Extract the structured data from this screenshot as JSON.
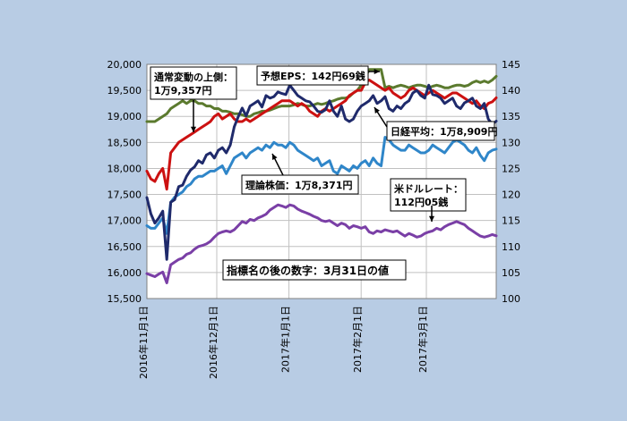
{
  "chart_data": {
    "type": "line",
    "colors": {
      "background": "#b8cce4",
      "plot_background": "#ffffff",
      "grid": "#c0c0c0",
      "nikkei": "#1f2a6b",
      "upper": "#cc1111",
      "eps": "#5b7a2e",
      "theory": "#2f86c9",
      "usd": "#7a3fa6"
    },
    "left_axis": {
      "range": [
        15500,
        20000
      ],
      "ticks": [
        15500,
        16000,
        16500,
        17000,
        17500,
        18000,
        18500,
        19000,
        19500,
        20000
      ],
      "tick_labels": [
        "15,500",
        "16,000",
        "16,500",
        "17,000",
        "17,500",
        "18,000",
        "18,500",
        "19,000",
        "19,500",
        "20,000"
      ]
    },
    "right_axis": {
      "range": [
        100,
        145
      ],
      "ticks": [
        100,
        105,
        110,
        115,
        120,
        125,
        130,
        135,
        140,
        145
      ],
      "tick_labels": [
        "100",
        "105",
        "110",
        "115",
        "120",
        "125",
        "130",
        "135",
        "140",
        "145"
      ]
    },
    "x_axis": {
      "start": "2016-11-01",
      "end": "2017-03-31",
      "ticks": [
        "2016-11-01",
        "2016-12-01",
        "2017-01-01",
        "2017-02-01",
        "2017-03-01"
      ],
      "tick_labels": [
        "2016年11月1日",
        "2016年12月1日",
        "2017年1月1日",
        "2017年2月1日",
        "2017年3月1日"
      ]
    },
    "grid": true,
    "series": [
      {
        "key": "nikkei",
        "axis": "left",
        "values": [
          17440,
          17130,
          16950,
          17050,
          17180,
          16250,
          17350,
          17400,
          17650,
          17680,
          17850,
          17970,
          18030,
          18150,
          18100,
          18260,
          18300,
          18200,
          18350,
          18400,
          18300,
          18450,
          18800,
          18990,
          19160,
          19010,
          19200,
          19250,
          19300,
          19180,
          19400,
          19350,
          19380,
          19470,
          19440,
          19420,
          19600,
          19500,
          19400,
          19350,
          19300,
          19280,
          19200,
          19100,
          19080,
          19130,
          19300,
          19100,
          19000,
          19200,
          18950,
          18900,
          18950,
          19100,
          19200,
          19250,
          19300,
          19400,
          19250,
          19300,
          19380,
          19150,
          19100,
          19200,
          19150,
          19250,
          19300,
          19450,
          19500,
          19400,
          19350,
          19600,
          19420,
          19400,
          19350,
          19250,
          19300,
          19350,
          19200,
          19150,
          19260,
          19300,
          19350,
          19200,
          19150,
          19250,
          18950,
          18850,
          18909
        ]
      },
      {
        "key": "upper",
        "axis": "left",
        "values": [
          17950,
          17800,
          17750,
          17900,
          18000,
          17600,
          18300,
          18400,
          18500,
          18550,
          18600,
          18650,
          18700,
          18750,
          18800,
          18850,
          18900,
          19000,
          19050,
          18950,
          19000,
          19050,
          18950,
          18900,
          18900,
          18950,
          18900,
          18950,
          19000,
          19050,
          19100,
          19150,
          19200,
          19250,
          19300,
          19300,
          19300,
          19250,
          19200,
          19250,
          19200,
          19100,
          19050,
          19000,
          19100,
          19150,
          19100,
          19150,
          19200,
          19250,
          19300,
          19400,
          19450,
          19500,
          19500,
          19650,
          19700,
          19650,
          19600,
          19550,
          19500,
          19550,
          19450,
          19400,
          19350,
          19400,
          19500,
          19550,
          19500,
          19450,
          19400,
          19450,
          19500,
          19450,
          19400,
          19350,
          19400,
          19450,
          19450,
          19400,
          19350,
          19300,
          19250,
          19300,
          19200,
          19150,
          19250,
          19280,
          19357
        ]
      },
      {
        "key": "eps",
        "axis": "right",
        "values": [
          134,
          134,
          134,
          134.5,
          135,
          135.5,
          136.5,
          137,
          137.5,
          138,
          137.5,
          138,
          138,
          137.5,
          137.5,
          137,
          137,
          136.5,
          136.5,
          136,
          136,
          135.8,
          135.5,
          135.5,
          135.3,
          135,
          135,
          135.5,
          135.7,
          136,
          136,
          136.2,
          136.5,
          136.8,
          137,
          137,
          137,
          137.2,
          137.5,
          137.3,
          137,
          137,
          137.2,
          137.5,
          137.3,
          137.5,
          137.8,
          138,
          138.3,
          138.5,
          138.5,
          138.8,
          139.5,
          140,
          141,
          142.5,
          144,
          144,
          144,
          144,
          140.5,
          140.8,
          140.5,
          140.8,
          141,
          140.8,
          140.5,
          140.8,
          141,
          141,
          140.8,
          140.5,
          140.8,
          141,
          140.8,
          140.5,
          140.5,
          140.8,
          141,
          141,
          140.8,
          141,
          141.5,
          141.8,
          141.5,
          141.8,
          141.5,
          142,
          142.69
        ]
      },
      {
        "key": "theory",
        "axis": "left",
        "values": [
          16900,
          16850,
          16850,
          16950,
          17050,
          16750,
          17350,
          17450,
          17500,
          17550,
          17650,
          17700,
          17800,
          17850,
          17850,
          17900,
          17950,
          17950,
          18000,
          18050,
          17900,
          18050,
          18200,
          18250,
          18300,
          18200,
          18300,
          18350,
          18400,
          18350,
          18450,
          18400,
          18500,
          18450,
          18450,
          18400,
          18500,
          18450,
          18350,
          18300,
          18250,
          18200,
          18150,
          18200,
          18050,
          18100,
          18150,
          17950,
          17900,
          18050,
          18000,
          17950,
          18050,
          18000,
          18100,
          18150,
          18050,
          18200,
          18100,
          18050,
          18600,
          18550,
          18450,
          18400,
          18350,
          18350,
          18450,
          18400,
          18350,
          18300,
          18300,
          18350,
          18450,
          18400,
          18350,
          18300,
          18400,
          18500,
          18550,
          18500,
          18450,
          18350,
          18300,
          18400,
          18250,
          18150,
          18300,
          18350,
          18371
        ]
      },
      {
        "key": "usd",
        "axis": "right",
        "values": [
          104.8,
          104.5,
          104.2,
          104.7,
          105.1,
          103.0,
          106.5,
          107.0,
          107.5,
          107.8,
          108.5,
          108.8,
          109.5,
          110.0,
          110.2,
          110.5,
          111.0,
          111.8,
          112.5,
          112.8,
          113.0,
          112.8,
          113.2,
          114.0,
          114.8,
          114.5,
          115.2,
          115.0,
          115.5,
          115.8,
          116.2,
          117.0,
          117.5,
          118.0,
          117.8,
          117.5,
          118.0,
          117.8,
          117.2,
          116.8,
          116.5,
          116.2,
          115.8,
          115.5,
          115.0,
          114.8,
          115.0,
          114.5,
          114.0,
          114.5,
          114.2,
          113.5,
          114.0,
          113.8,
          113.5,
          113.8,
          112.8,
          112.5,
          113.0,
          112.8,
          113.2,
          113.0,
          112.8,
          113.0,
          112.5,
          112.0,
          112.5,
          112.2,
          111.8,
          112.0,
          112.5,
          112.8,
          113.0,
          113.5,
          113.2,
          113.8,
          114.2,
          114.5,
          114.8,
          114.5,
          114.2,
          113.5,
          113.0,
          112.5,
          112.0,
          111.8,
          112.0,
          112.3,
          112.05
        ]
      }
    ],
    "annotations": {
      "upper": "通常変動の上側：\n1万9,357円",
      "eps": "予想EPS：142円69銭",
      "nikkei": "日経平均：1万8,909円",
      "theory": "理論株価：1万8,371円",
      "usd": "米ドルレート：\n112円05銭",
      "note": "指標名の後の数字：3月31日の値"
    }
  }
}
